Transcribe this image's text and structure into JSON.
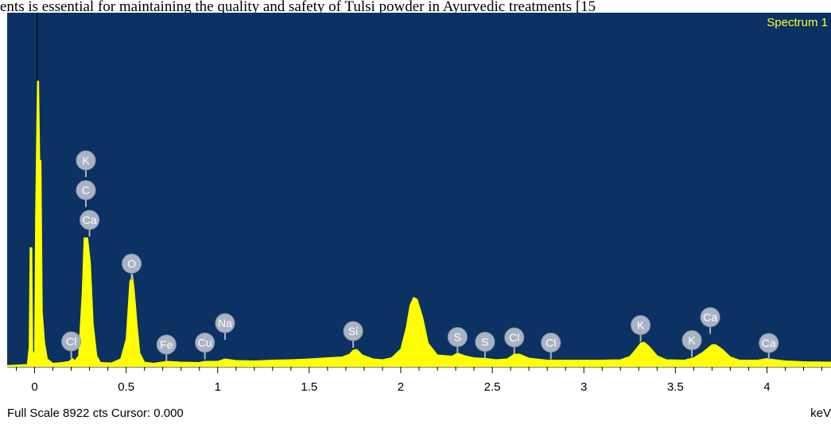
{
  "page": {
    "top_text": "ents is essential for maintaining the quality and safety of Tulsi powder in Ayurvedic treatments [15",
    "footer": "Full Scale 8922 cts Cursor: 0.000",
    "unit": "keV"
  },
  "chart_data": {
    "type": "area",
    "title": "Spectrum 1",
    "xlabel": "keV",
    "xlim": [
      -0.15,
      4.35
    ],
    "ylim": [
      0,
      8922
    ],
    "xticks": [
      "0",
      "0.5",
      "1",
      "1.5",
      "2",
      "2.5",
      "3",
      "3.5",
      "4"
    ],
    "colors": {
      "background": "#0b3262",
      "spectrum": "#ffff00",
      "marker": "#aab3c4",
      "title": "#ffff33"
    },
    "series": [
      {
        "values": [
          [
            -0.17,
            30
          ],
          [
            -0.04,
            60
          ],
          [
            -0.03,
            500
          ],
          [
            -0.025,
            3000
          ],
          [
            -0.015,
            3000
          ],
          [
            -0.01,
            400
          ],
          [
            0.0,
            300
          ],
          [
            0.005,
            3800
          ],
          [
            0.015,
            7200
          ],
          [
            0.022,
            7200
          ],
          [
            0.028,
            5200
          ],
          [
            0.035,
            5200
          ],
          [
            0.042,
            1400
          ],
          [
            0.055,
            600
          ],
          [
            0.07,
            200
          ],
          [
            0.1,
            90
          ],
          [
            0.15,
            110
          ],
          [
            0.19,
            140
          ],
          [
            0.205,
            220
          ],
          [
            0.22,
            160
          ],
          [
            0.24,
            280
          ],
          [
            0.26,
            1900
          ],
          [
            0.27,
            3250
          ],
          [
            0.29,
            3250
          ],
          [
            0.305,
            2600
          ],
          [
            0.32,
            1100
          ],
          [
            0.34,
            280
          ],
          [
            0.36,
            110
          ],
          [
            0.42,
            100
          ],
          [
            0.47,
            200
          ],
          [
            0.5,
            700
          ],
          [
            0.52,
            2150
          ],
          [
            0.535,
            2300
          ],
          [
            0.545,
            1900
          ],
          [
            0.56,
            1050
          ],
          [
            0.575,
            350
          ],
          [
            0.6,
            120
          ],
          [
            0.65,
            90
          ],
          [
            0.72,
            140
          ],
          [
            0.8,
            120
          ],
          [
            0.9,
            110
          ],
          [
            0.93,
            140
          ],
          [
            1.0,
            140
          ],
          [
            1.04,
            200
          ],
          [
            1.1,
            160
          ],
          [
            1.2,
            150
          ],
          [
            1.3,
            170
          ],
          [
            1.4,
            180
          ],
          [
            1.5,
            200
          ],
          [
            1.6,
            230
          ],
          [
            1.68,
            250
          ],
          [
            1.72,
            320
          ],
          [
            1.74,
            420
          ],
          [
            1.76,
            440
          ],
          [
            1.79,
            300
          ],
          [
            1.85,
            200
          ],
          [
            1.9,
            180
          ],
          [
            1.95,
            230
          ],
          [
            2.0,
            450
          ],
          [
            2.03,
            1000
          ],
          [
            2.05,
            1550
          ],
          [
            2.07,
            1750
          ],
          [
            2.09,
            1700
          ],
          [
            2.12,
            1250
          ],
          [
            2.15,
            600
          ],
          [
            2.2,
            300
          ],
          [
            2.28,
            270
          ],
          [
            2.31,
            350
          ],
          [
            2.35,
            280
          ],
          [
            2.4,
            230
          ],
          [
            2.47,
            210
          ],
          [
            2.52,
            180
          ],
          [
            2.58,
            200
          ],
          [
            2.62,
            320
          ],
          [
            2.65,
            320
          ],
          [
            2.7,
            220
          ],
          [
            2.8,
            170
          ],
          [
            2.9,
            170
          ],
          [
            3.0,
            170
          ],
          [
            3.1,
            170
          ],
          [
            3.2,
            180
          ],
          [
            3.25,
            260
          ],
          [
            3.28,
            420
          ],
          [
            3.31,
            600
          ],
          [
            3.33,
            620
          ],
          [
            3.36,
            500
          ],
          [
            3.4,
            280
          ],
          [
            3.45,
            180
          ],
          [
            3.55,
            170
          ],
          [
            3.6,
            230
          ],
          [
            3.65,
            370
          ],
          [
            3.7,
            560
          ],
          [
            3.72,
            560
          ],
          [
            3.76,
            430
          ],
          [
            3.8,
            250
          ],
          [
            3.85,
            170
          ],
          [
            3.95,
            170
          ],
          [
            4.0,
            210
          ],
          [
            4.03,
            190
          ],
          [
            4.1,
            150
          ],
          [
            4.2,
            130
          ],
          [
            4.35,
            120
          ]
        ]
      }
    ],
    "markers": [
      {
        "label": "K",
        "x": 0.28,
        "y": 5200
      },
      {
        "label": "C",
        "x": 0.28,
        "y": 4450
      },
      {
        "label": "Ca",
        "x": 0.3,
        "y": 3700
      },
      {
        "label": "O",
        "x": 0.53,
        "y": 2600
      },
      {
        "label": "Cl",
        "x": 0.2,
        "y": 640
      },
      {
        "label": "Fe",
        "x": 0.72,
        "y": 560
      },
      {
        "label": "Cu",
        "x": 0.93,
        "y": 610
      },
      {
        "label": "Na",
        "x": 1.04,
        "y": 1100
      },
      {
        "label": "Si",
        "x": 1.74,
        "y": 900
      },
      {
        "label": "S",
        "x": 2.31,
        "y": 750
      },
      {
        "label": "S",
        "x": 2.46,
        "y": 630
      },
      {
        "label": "Cl",
        "x": 2.62,
        "y": 740
      },
      {
        "label": "Cl",
        "x": 2.82,
        "y": 610
      },
      {
        "label": "K",
        "x": 3.31,
        "y": 1050
      },
      {
        "label": "K",
        "x": 3.59,
        "y": 670
      },
      {
        "label": "Ca",
        "x": 3.69,
        "y": 1250
      },
      {
        "label": "Ca",
        "x": 4.01,
        "y": 600
      }
    ]
  }
}
